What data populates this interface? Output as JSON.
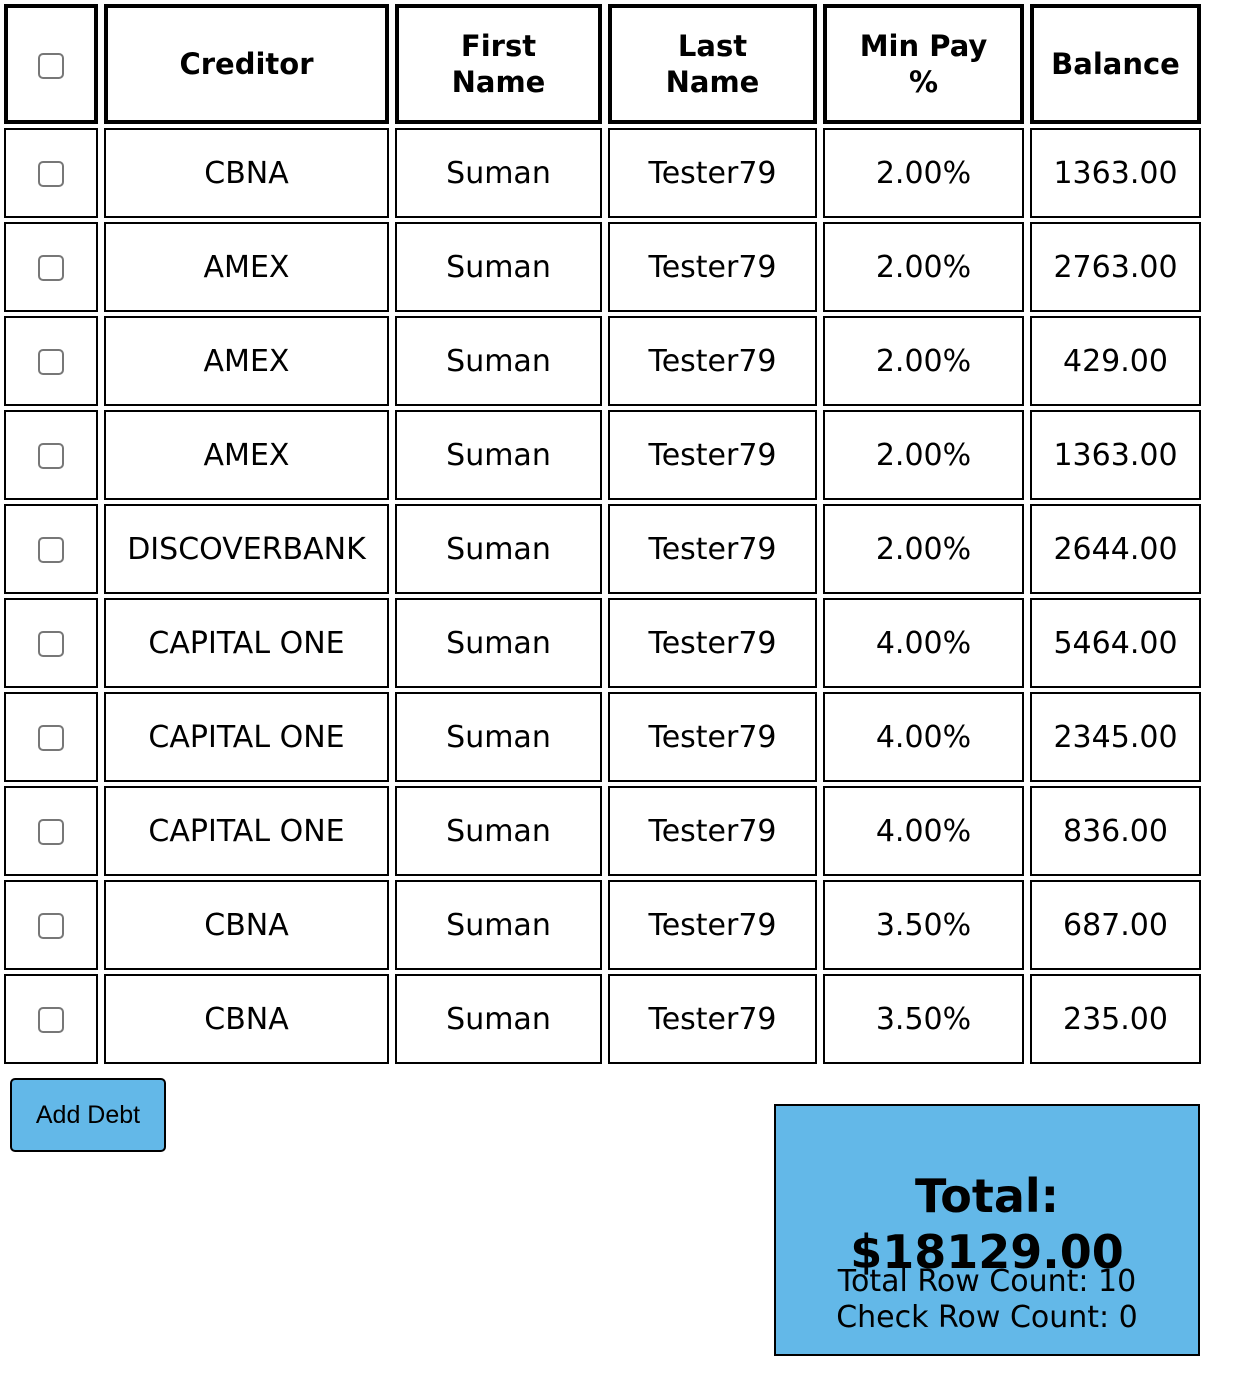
{
  "table": {
    "headers": {
      "creditor": "Creditor",
      "first_name": "First Name",
      "last_name": "Last Name",
      "min_pay": "Min Pay %",
      "balance": "Balance"
    },
    "rows": [
      {
        "creditor": "CBNA",
        "first_name": "Suman",
        "last_name": "Tester79",
        "min_pay": "2.00%",
        "balance": "1363.00"
      },
      {
        "creditor": "AMEX",
        "first_name": "Suman",
        "last_name": "Tester79",
        "min_pay": "2.00%",
        "balance": "2763.00"
      },
      {
        "creditor": "AMEX",
        "first_name": "Suman",
        "last_name": "Tester79",
        "min_pay": "2.00%",
        "balance": "429.00"
      },
      {
        "creditor": "AMEX",
        "first_name": "Suman",
        "last_name": "Tester79",
        "min_pay": "2.00%",
        "balance": "1363.00"
      },
      {
        "creditor": "DISCOVERBANK",
        "first_name": "Suman",
        "last_name": "Tester79",
        "min_pay": "2.00%",
        "balance": "2644.00"
      },
      {
        "creditor": "CAPITAL ONE",
        "first_name": "Suman",
        "last_name": "Tester79",
        "min_pay": "4.00%",
        "balance": "5464.00"
      },
      {
        "creditor": "CAPITAL ONE",
        "first_name": "Suman",
        "last_name": "Tester79",
        "min_pay": "4.00%",
        "balance": "2345.00"
      },
      {
        "creditor": "CAPITAL ONE",
        "first_name": "Suman",
        "last_name": "Tester79",
        "min_pay": "4.00%",
        "balance": "836.00"
      },
      {
        "creditor": "CBNA",
        "first_name": "Suman",
        "last_name": "Tester79",
        "min_pay": "3.50%",
        "balance": "687.00"
      },
      {
        "creditor": "CBNA",
        "first_name": "Suman",
        "last_name": "Tester79",
        "min_pay": "3.50%",
        "balance": "235.00"
      }
    ]
  },
  "actions": {
    "add_debt_label": "Add Debt"
  },
  "summary": {
    "total": "Total: $18129.00",
    "total_row_count": "Total Row Count: 10",
    "check_row_count": "Check Row Count: 0"
  },
  "colors": {
    "accent": "#63b8e8",
    "border": "#000000"
  }
}
